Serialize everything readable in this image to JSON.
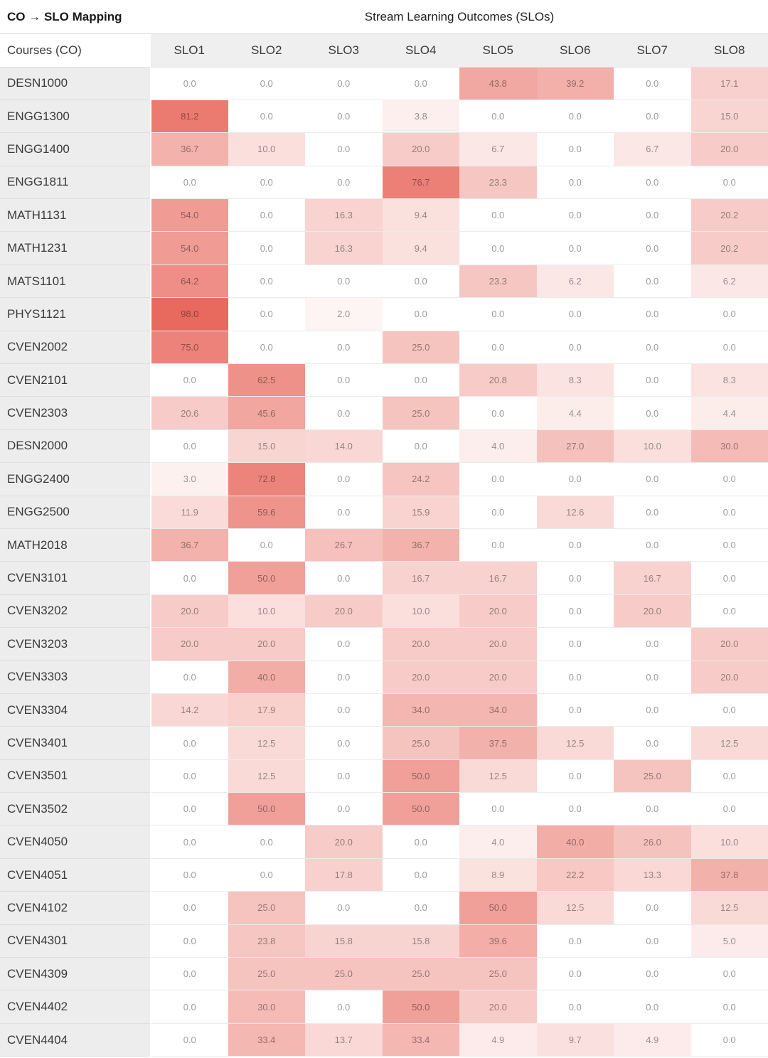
{
  "header": {
    "title": "CO → SLO Mapping",
    "subtitle": "Stream Learning Outcomes (SLOs)"
  },
  "table": {
    "row_header_label": "Courses (CO)"
  },
  "heatmap_colors": {
    "zero_color": "#ffffff",
    "max_color": "#e8695e",
    "max_value": 98,
    "exponent": 0.68
  },
  "chart_data": {
    "type": "heatmap",
    "title": "CO → SLO Mapping",
    "subtitle": "Stream Learning Outcomes (SLOs)",
    "x_labels": [
      "SLO1",
      "SLO2",
      "SLO3",
      "SLO4",
      "SLO5",
      "SLO6",
      "SLO7",
      "SLO8"
    ],
    "y_labels": [
      "DESN1000",
      "ENGG1300",
      "ENGG1400",
      "ENGG1811",
      "MATH1131",
      "MATH1231",
      "MATS1101",
      "PHYS1121",
      "CVEN2002",
      "CVEN2101",
      "CVEN2303",
      "DESN2000",
      "ENGG2400",
      "ENGG2500",
      "MATH2018",
      "CVEN3101",
      "CVEN3202",
      "CVEN3203",
      "CVEN3303",
      "CVEN3304",
      "CVEN3401",
      "CVEN3501",
      "CVEN3502",
      "CVEN4050",
      "CVEN4051",
      "CVEN4102",
      "CVEN4301",
      "CVEN4309",
      "CVEN4402",
      "CVEN4404"
    ],
    "rows": [
      [
        0.0,
        0.0,
        0.0,
        0.0,
        43.8,
        39.2,
        0.0,
        17.1
      ],
      [
        81.2,
        0.0,
        0.0,
        3.8,
        0.0,
        0.0,
        0.0,
        15.0
      ],
      [
        36.7,
        10.0,
        0.0,
        20.0,
        6.7,
        0.0,
        6.7,
        20.0
      ],
      [
        0.0,
        0.0,
        0.0,
        76.7,
        23.3,
        0.0,
        0.0,
        0.0
      ],
      [
        54.0,
        0.0,
        16.3,
        9.4,
        0.0,
        0.0,
        0.0,
        20.2
      ],
      [
        54.0,
        0.0,
        16.3,
        9.4,
        0.0,
        0.0,
        0.0,
        20.2
      ],
      [
        64.2,
        0.0,
        0.0,
        0.0,
        23.3,
        6.2,
        0.0,
        6.2
      ],
      [
        98.0,
        0.0,
        2.0,
        0.0,
        0.0,
        0.0,
        0.0,
        0.0
      ],
      [
        75.0,
        0.0,
        0.0,
        25.0,
        0.0,
        0.0,
        0.0,
        0.0
      ],
      [
        0.0,
        62.5,
        0.0,
        0.0,
        20.8,
        8.3,
        0.0,
        8.3
      ],
      [
        20.6,
        45.6,
        0.0,
        25.0,
        0.0,
        4.4,
        0.0,
        4.4
      ],
      [
        0.0,
        15.0,
        14.0,
        0.0,
        4.0,
        27.0,
        10.0,
        30.0
      ],
      [
        3.0,
        72.8,
        0.0,
        24.2,
        0.0,
        0.0,
        0.0,
        0.0
      ],
      [
        11.9,
        59.6,
        0.0,
        15.9,
        0.0,
        12.6,
        0.0,
        0.0
      ],
      [
        36.7,
        0.0,
        26.7,
        36.7,
        0.0,
        0.0,
        0.0,
        0.0
      ],
      [
        0.0,
        50.0,
        0.0,
        16.7,
        16.7,
        0.0,
        16.7,
        0.0
      ],
      [
        20.0,
        10.0,
        20.0,
        10.0,
        20.0,
        0.0,
        20.0,
        0.0
      ],
      [
        20.0,
        20.0,
        0.0,
        20.0,
        20.0,
        0.0,
        0.0,
        20.0
      ],
      [
        0.0,
        40.0,
        0.0,
        20.0,
        20.0,
        0.0,
        0.0,
        20.0
      ],
      [
        14.2,
        17.9,
        0.0,
        34.0,
        34.0,
        0.0,
        0.0,
        0.0
      ],
      [
        0.0,
        12.5,
        0.0,
        25.0,
        37.5,
        12.5,
        0.0,
        12.5
      ],
      [
        0.0,
        12.5,
        0.0,
        50.0,
        12.5,
        0.0,
        25.0,
        0.0
      ],
      [
        0.0,
        50.0,
        0.0,
        50.0,
        0.0,
        0.0,
        0.0,
        0.0
      ],
      [
        0.0,
        0.0,
        20.0,
        0.0,
        4.0,
        40.0,
        26.0,
        10.0
      ],
      [
        0.0,
        0.0,
        17.8,
        0.0,
        8.9,
        22.2,
        13.3,
        37.8
      ],
      [
        0.0,
        25.0,
        0.0,
        0.0,
        50.0,
        12.5,
        0.0,
        12.5
      ],
      [
        0.0,
        23.8,
        15.8,
        15.8,
        39.6,
        0.0,
        0.0,
        5.0
      ],
      [
        0.0,
        25.0,
        25.0,
        25.0,
        25.0,
        0.0,
        0.0,
        0.0
      ],
      [
        0.0,
        30.0,
        0.0,
        50.0,
        20.0,
        0.0,
        0.0,
        0.0
      ],
      [
        0.0,
        33.4,
        13.7,
        33.4,
        4.9,
        9.7,
        4.9,
        0.0
      ]
    ],
    "value_format": "one_decimal",
    "color_scale": {
      "min_color": "#ffffff",
      "max_color": "#e8695e",
      "domain": [
        0,
        98
      ]
    },
    "legend": "none",
    "grid": "cell-borders"
  }
}
